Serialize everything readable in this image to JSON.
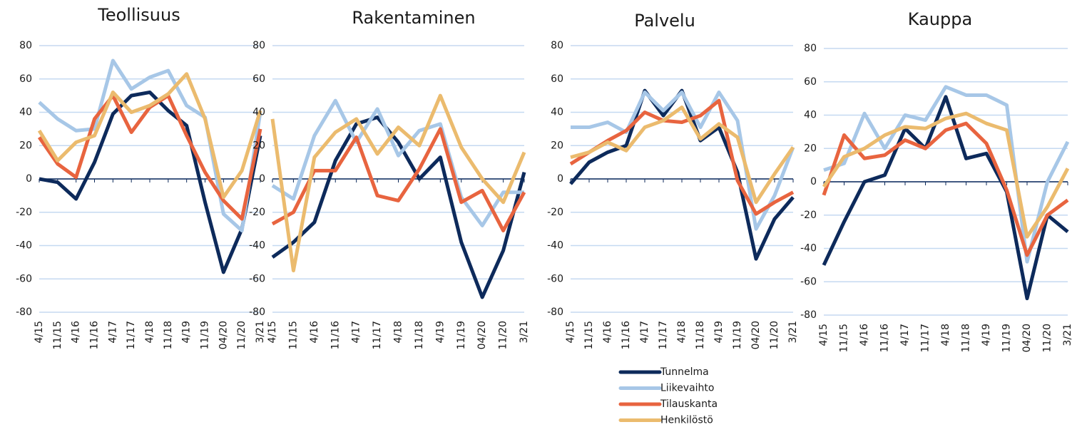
{
  "chart_data": [
    {
      "type": "line",
      "title": "Teollisuus",
      "categories": [
        "4/15",
        "11/15",
        "4/16",
        "11/16",
        "4/17",
        "11/17",
        "4/18",
        "11/18",
        "4/19",
        "11/19",
        "04/20",
        "11/20",
        "3/21"
      ],
      "ylim": [
        -80,
        80
      ],
      "yticks": [
        -80,
        -60,
        -40,
        -20,
        0,
        20,
        40,
        60,
        80
      ],
      "grid": true,
      "series": [
        {
          "name": "Tunnelma",
          "color": "#0d2a5b",
          "values": [
            0,
            -2,
            -12,
            10,
            39,
            50,
            52,
            41,
            32,
            -14,
            -56,
            -30,
            26
          ]
        },
        {
          "name": "Liikevaihto",
          "color": "#a7c7e7",
          "values": [
            46,
            36,
            29,
            30,
            71,
            54,
            61,
            65,
            44,
            37,
            -21,
            -31,
            40
          ]
        },
        {
          "name": "Tilauskanta",
          "color": "#e8643f",
          "values": [
            25,
            9,
            1,
            36,
            50,
            28,
            43,
            50,
            26,
            4,
            -13,
            -24,
            30
          ]
        },
        {
          "name": "Henkilöstö",
          "color": "#ebbb6e",
          "values": [
            29,
            11,
            22,
            26,
            52,
            40,
            44,
            51,
            63,
            36,
            -11,
            5,
            41
          ]
        }
      ]
    },
    {
      "type": "line",
      "title": "Rakentaminen",
      "categories": [
        "4/15",
        "11/15",
        "4/16",
        "11/16",
        "4/17",
        "11/17",
        "4/18",
        "11/18",
        "4/19",
        "11/19",
        "04/20",
        "11/20",
        "3/21"
      ],
      "ylim": [
        -80,
        80
      ],
      "yticks": [
        -80,
        -60,
        -40,
        -20,
        0,
        20,
        40,
        60,
        80
      ],
      "grid": true,
      "series": [
        {
          "name": "Tunnelma",
          "color": "#0d2a5b",
          "values": [
            -47,
            -38,
            -26,
            11,
            33,
            37,
            22,
            0,
            13,
            -38,
            -71,
            -43,
            4
          ]
        },
        {
          "name": "Liikevaihto",
          "color": "#a7c7e7",
          "values": [
            -4,
            -12,
            26,
            47,
            22,
            42,
            14,
            29,
            33,
            -11,
            -28,
            -8,
            -8
          ]
        },
        {
          "name": "Tilauskanta",
          "color": "#e8643f",
          "values": [
            -27,
            -20,
            5,
            5,
            25,
            -10,
            -13,
            6,
            30,
            -14,
            -7,
            -31,
            -8
          ]
        },
        {
          "name": "Henkilöstö",
          "color": "#ebbb6e",
          "values": [
            36,
            -55,
            13,
            28,
            36,
            15,
            31,
            20,
            50,
            19,
            0,
            -14,
            16
          ]
        }
      ]
    },
    {
      "type": "line",
      "title": "Palvelu",
      "categories": [
        "4/15",
        "11/15",
        "4/16",
        "11/16",
        "4/17",
        "11/17",
        "4/18",
        "11/18",
        "4/19",
        "11/19",
        "04/20",
        "11/20",
        "3/21"
      ],
      "ylim": [
        -80,
        80
      ],
      "yticks": [
        -80,
        -60,
        -40,
        -20,
        0,
        20,
        40,
        60,
        80
      ],
      "grid": true,
      "series": [
        {
          "name": "Tunnelma",
          "color": "#0d2a5b",
          "values": [
            -3,
            10,
            16,
            20,
            53,
            38,
            53,
            23,
            31,
            4,
            -48,
            -24,
            -11
          ]
        },
        {
          "name": "Liikevaihto",
          "color": "#a7c7e7",
          "values": [
            31,
            31,
            34,
            28,
            52,
            41,
            52,
            31,
            52,
            35,
            -30,
            -10,
            19
          ]
        },
        {
          "name": "Tilauskanta",
          "color": "#e8643f",
          "values": [
            9,
            16,
            23,
            29,
            40,
            35,
            34,
            38,
            47,
            -1,
            -21,
            -14,
            -8
          ]
        },
        {
          "name": "Henkilöstö",
          "color": "#ebbb6e",
          "values": [
            13,
            16,
            22,
            17,
            31,
            35,
            43,
            24,
            33,
            25,
            -14,
            3,
            19
          ]
        }
      ]
    },
    {
      "type": "line",
      "title": "Kauppa",
      "categories": [
        "4/15",
        "11/15",
        "4/16",
        "11/16",
        "4/17",
        "11/17",
        "4/18",
        "11/18",
        "4/19",
        "11/19",
        "04/20",
        "11/20",
        "3/21"
      ],
      "ylim": [
        -80,
        80
      ],
      "yticks": [
        -80,
        -60,
        -40,
        -20,
        0,
        20,
        40,
        60,
        80
      ],
      "grid": true,
      "series": [
        {
          "name": "Tunnelma",
          "color": "#0d2a5b",
          "values": [
            -50,
            -24,
            0,
            4,
            32,
            20,
            51,
            14,
            17,
            -6,
            -70,
            -20,
            -30
          ]
        },
        {
          "name": "Liikevaihto",
          "color": "#a7c7e7",
          "values": [
            7,
            11,
            41,
            20,
            40,
            37,
            57,
            52,
            52,
            46,
            -48,
            0,
            24
          ]
        },
        {
          "name": "Tilauskanta",
          "color": "#e8643f",
          "values": [
            -8,
            28,
            14,
            16,
            25,
            20,
            31,
            35,
            23,
            -5,
            -44,
            -20,
            -11
          ]
        },
        {
          "name": "Henkilöstö",
          "color": "#ebbb6e",
          "values": [
            -3,
            15,
            20,
            28,
            33,
            32,
            38,
            41,
            35,
            31,
            -33,
            -15,
            8
          ]
        }
      ]
    }
  ]
}
